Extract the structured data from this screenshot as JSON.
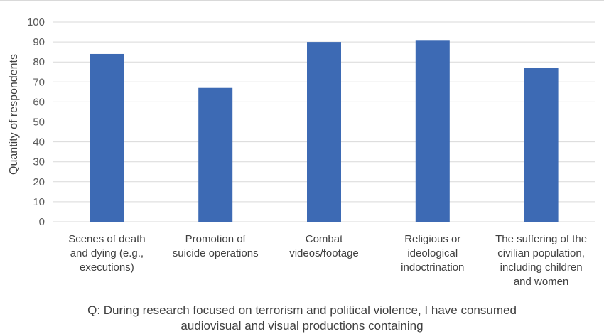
{
  "chart_data": {
    "type": "bar",
    "categories": [
      [
        "Scenes of death",
        "and dying (e.g.,",
        "executions)"
      ],
      [
        "Promotion of",
        "suicide operations"
      ],
      [
        "Combat",
        "videos/footage"
      ],
      [
        "Religious or",
        "ideological",
        "indoctrination"
      ],
      [
        "The suffering of the",
        "civilian population,",
        "including children",
        "and women"
      ]
    ],
    "values": [
      84,
      67,
      90,
      91,
      77
    ],
    "ylabel": "Quantity of respondents",
    "xlabel": [
      "Q: During research focused on terrorism and political violence, I have consumed",
      "audiovisual and visual productions containing"
    ],
    "ylim": [
      0,
      100
    ],
    "yticks": [
      0,
      10,
      20,
      30,
      40,
      50,
      60,
      70,
      80,
      90,
      100
    ],
    "grid": true,
    "legend": "none",
    "bar_color": "#3d6ab4",
    "grid_color": "#d9d9d9"
  }
}
